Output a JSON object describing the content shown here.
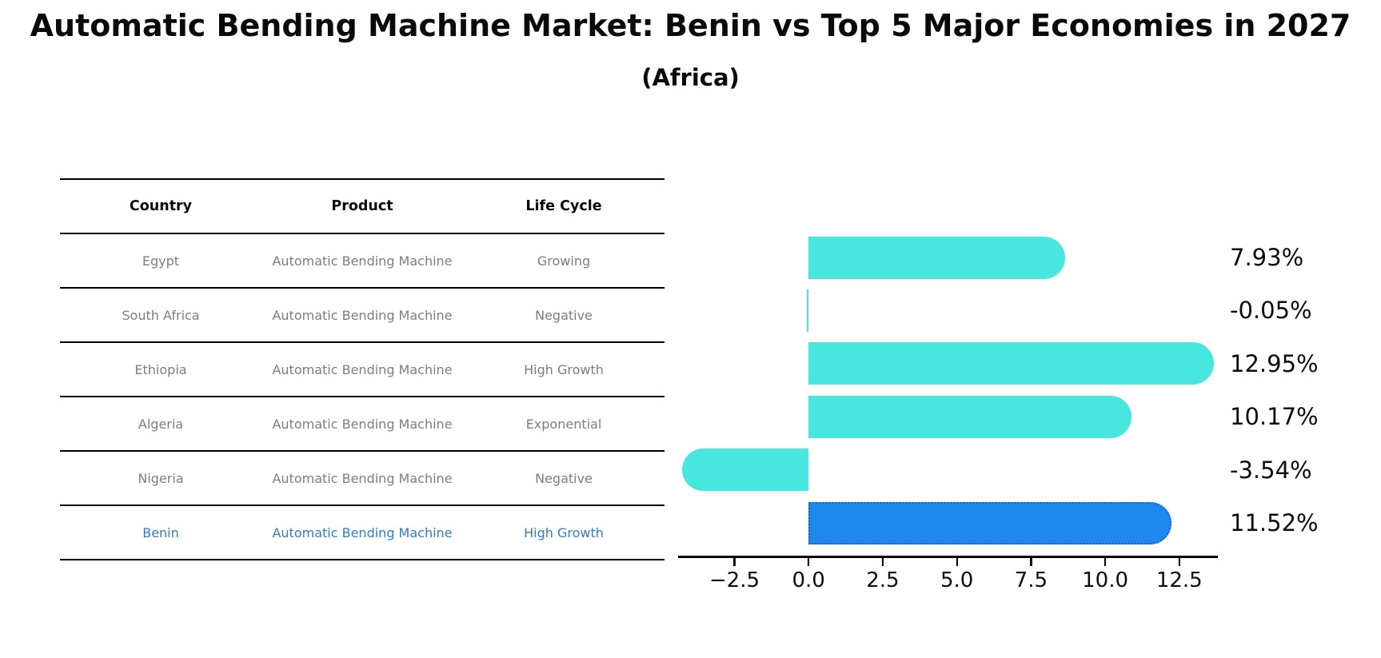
{
  "title": "Automatic Bending Machine Market: Benin vs Top 5 Major Economies in 2027",
  "subtitle": "(Africa)",
  "table": {
    "headers": [
      "Country",
      "Product",
      "Life Cycle"
    ],
    "rows": [
      {
        "country": "Egypt",
        "product": "Automatic Bending Machine",
        "life_cycle": "Growing",
        "highlight": false
      },
      {
        "country": "South Africa",
        "product": "Automatic Bending Machine",
        "life_cycle": "Negative",
        "highlight": false
      },
      {
        "country": "Ethiopia",
        "product": "Automatic Bending Machine",
        "life_cycle": "High Growth",
        "highlight": false
      },
      {
        "country": "Algeria",
        "product": "Automatic Bending Machine",
        "life_cycle": "Exponential",
        "highlight": false
      },
      {
        "country": "Nigeria",
        "product": "Automatic Bending Machine",
        "life_cycle": "Negative",
        "highlight": false
      },
      {
        "country": "Benin",
        "product": "Automatic Bending Machine",
        "life_cycle": "High Growth",
        "highlight": true
      }
    ],
    "normal_text_color": "#7d7d7d",
    "header_text_color": "#0a0a0a",
    "highlight_text_color": "#2e7ec0"
  },
  "chart_data": {
    "type": "bar",
    "orientation": "horizontal",
    "title": "",
    "xlabel": "",
    "ylabel": "",
    "categories": [
      "Egypt",
      "South Africa",
      "Ethiopia",
      "Algeria",
      "Nigeria",
      "Benin"
    ],
    "values": [
      7.93,
      -0.05,
      12.95,
      10.17,
      -3.54,
      11.52
    ],
    "value_labels": [
      "7.93%",
      "-0.05%",
      "12.95%",
      "10.17%",
      "-3.54%",
      "11.52%"
    ],
    "highlight_index": 5,
    "bar_color": "#47e6df",
    "highlight_bar_color": "#1e87f0",
    "highlight_edge_color": "#1263d8",
    "xlim": [
      -4.4,
      13.8
    ],
    "x_ticks": [
      -2.5,
      0.0,
      2.5,
      5.0,
      7.5,
      10.0,
      12.5
    ],
    "x_tick_labels": [
      "−2.5",
      "0.0",
      "2.5",
      "5.0",
      "7.5",
      "10.0",
      "12.5"
    ],
    "grid": false,
    "legend": null
  }
}
